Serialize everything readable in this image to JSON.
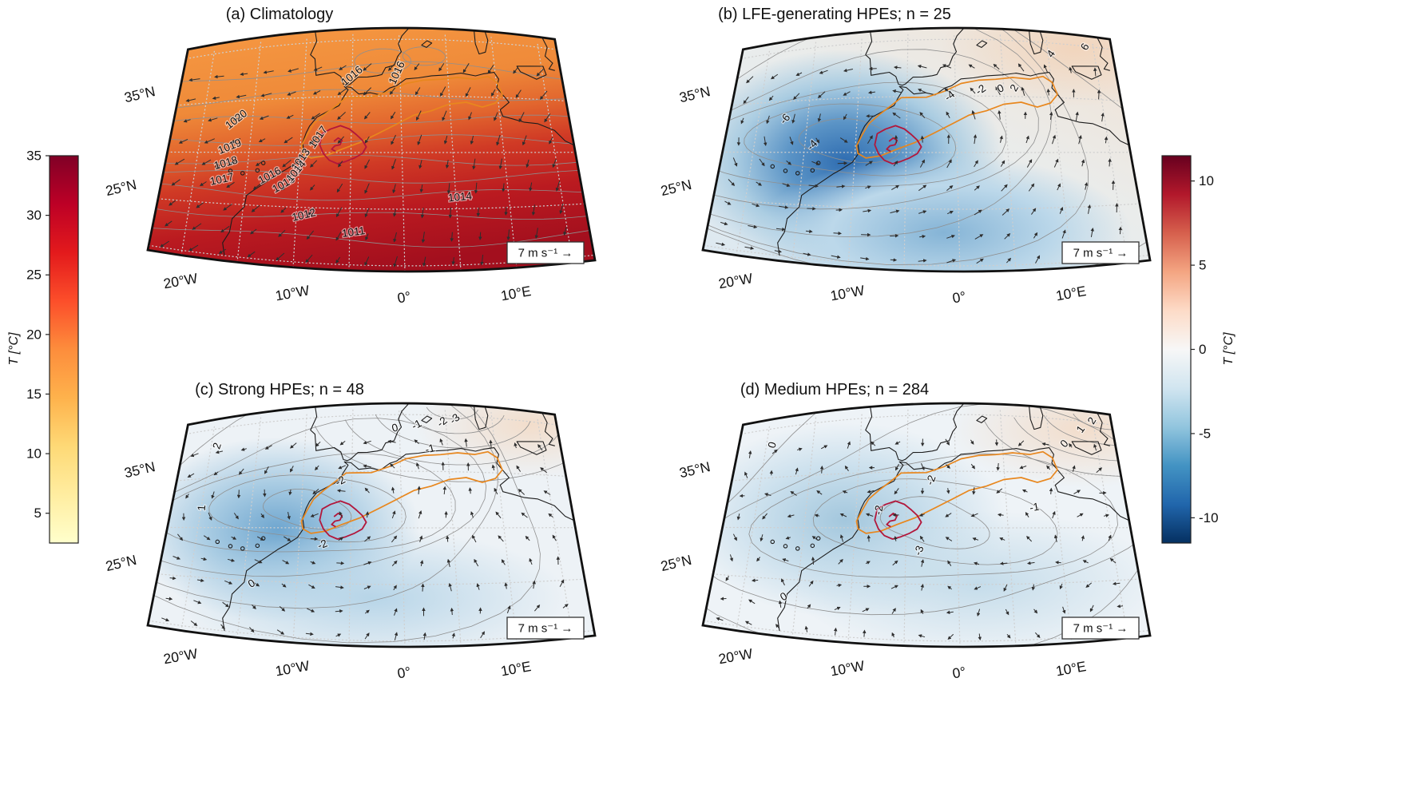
{
  "colorbar_left": {
    "label": "T [°C]",
    "ticks": [
      "35",
      "30",
      "25",
      "20",
      "15",
      "10",
      "5"
    ],
    "tick_values": [
      35,
      30,
      25,
      20,
      15,
      10,
      5
    ],
    "range": [
      2.5,
      35
    ],
    "colors": [
      "#ffffcc",
      "#ffeda0",
      "#fed976",
      "#feb24c",
      "#fd8d3c",
      "#fc4e2a",
      "#e31a1c",
      "#bd0026",
      "#800026"
    ]
  },
  "colorbar_right": {
    "label": "T [°C]",
    "ticks": [
      "10",
      "5",
      "0",
      "-5",
      "-10"
    ],
    "tick_values": [
      10,
      5,
      0,
      -5,
      -10
    ],
    "range": [
      -11.5,
      11.5
    ],
    "colors": [
      "#053061",
      "#2166ac",
      "#4393c3",
      "#92c5de",
      "#d1e5f0",
      "#f7f7f7",
      "#fddbc7",
      "#f4a582",
      "#d6604d",
      "#b2182b",
      "#67001f"
    ]
  },
  "panels": [
    {
      "id": "a",
      "title": "(a) Climatology",
      "scale_label": "7 m s⁻¹ →",
      "lat_labels": [
        {
          "text": "35°N",
          "lat": 35
        },
        {
          "text": "25°N",
          "lat": 25
        }
      ],
      "lon_labels": [
        {
          "text": "20°W",
          "lon": -20
        },
        {
          "text": "10°W",
          "lon": -10
        },
        {
          "text": "0°",
          "lon": 0
        },
        {
          "text": "10°E",
          "lon": 10
        }
      ],
      "contour_labels": [
        {
          "text": "1016",
          "u": 0.455,
          "v": 0.205,
          "rot": -40
        },
        {
          "text": "1016",
          "u": 0.575,
          "v": 0.19,
          "rot": -65
        },
        {
          "text": "1020",
          "u": 0.165,
          "v": 0.375,
          "rot": -38
        },
        {
          "text": "1019",
          "u": 0.155,
          "v": 0.5,
          "rot": -22
        },
        {
          "text": "1018",
          "u": 0.15,
          "v": 0.575,
          "rot": -16
        },
        {
          "text": "1017",
          "u": 0.145,
          "v": 0.65,
          "rot": -12
        },
        {
          "text": "1017",
          "u": 0.375,
          "v": 0.455,
          "rot": -55
        },
        {
          "text": "1013",
          "u": 0.335,
          "v": 0.55,
          "rot": -55
        },
        {
          "text": "1016",
          "u": 0.26,
          "v": 0.625,
          "rot": -28
        },
        {
          "text": "1015",
          "u": 0.295,
          "v": 0.66,
          "rot": -30
        },
        {
          "text": "1014",
          "u": 0.325,
          "v": 0.6,
          "rot": -50
        },
        {
          "text": "1012",
          "u": 0.345,
          "v": 0.79,
          "rot": -14
        },
        {
          "text": "1011",
          "u": 0.46,
          "v": 0.855,
          "rot": -8
        },
        {
          "text": "1014",
          "u": 0.71,
          "v": 0.71,
          "rot": -6
        }
      ]
    },
    {
      "id": "b",
      "title": "(b) LFE-generating HPEs; n = 25",
      "scale_label": "7 m s⁻¹ →",
      "lat_labels": [
        {
          "text": "35°N",
          "lat": 35
        },
        {
          "text": "25°N",
          "lat": 25
        }
      ],
      "lon_labels": [
        {
          "text": "20°W",
          "lon": -20
        },
        {
          "text": "10°W",
          "lon": -10
        },
        {
          "text": "0°",
          "lon": 0
        },
        {
          "text": "10°E",
          "lon": 10
        }
      ],
      "contour_labels": [
        {
          "text": "-6",
          "u": 0.15,
          "v": 0.37,
          "rot": -50
        },
        {
          "text": "-4",
          "u": 0.225,
          "v": 0.49,
          "rot": -45
        },
        {
          "text": "-4",
          "u": 0.565,
          "v": 0.29,
          "rot": -38
        },
        {
          "text": "-2",
          "u": 0.645,
          "v": 0.265,
          "rot": -35
        },
        {
          "text": "0",
          "u": 0.695,
          "v": 0.26,
          "rot": -25
        },
        {
          "text": "2",
          "u": 0.735,
          "v": 0.25,
          "rot": -60
        },
        {
          "text": "4",
          "u": 0.84,
          "v": 0.1,
          "rot": -55
        },
        {
          "text": "6",
          "u": 0.935,
          "v": 0.055,
          "rot": -60
        }
      ]
    },
    {
      "id": "c",
      "title": "(c) Strong HPEs; n = 48",
      "scale_label": "7 m s⁻¹ →",
      "lat_labels": [
        {
          "text": "35°N",
          "lat": 35
        },
        {
          "text": "25°N",
          "lat": 25
        }
      ],
      "lon_labels": [
        {
          "text": "20°W",
          "lon": -20
        },
        {
          "text": "10°W",
          "lon": -10
        },
        {
          "text": "0°",
          "lon": 0
        },
        {
          "text": "10°E",
          "lon": 10
        }
      ],
      "contour_labels": [
        {
          "text": "2",
          "u": 0.1,
          "v": 0.135,
          "rot": -72
        },
        {
          "text": "1",
          "u": 0.085,
          "v": 0.42,
          "rot": -86
        },
        {
          "text": "0",
          "u": 0.565,
          "v": 0.115,
          "rot": -15
        },
        {
          "text": "-1",
          "u": 0.625,
          "v": 0.1,
          "rot": -28
        },
        {
          "text": "-2",
          "u": 0.695,
          "v": 0.085,
          "rot": -38
        },
        {
          "text": "-3",
          "u": 0.73,
          "v": 0.07,
          "rot": -40
        },
        {
          "text": "-1",
          "u": 0.655,
          "v": 0.2,
          "rot": -14
        },
        {
          "text": "-2",
          "u": 0.425,
          "v": 0.33,
          "rot": -28
        },
        {
          "text": "-2",
          "u": 0.385,
          "v": 0.595,
          "rot": -22
        },
        {
          "text": "0",
          "u": 0.225,
          "v": 0.77,
          "rot": -32
        }
      ]
    },
    {
      "id": "d",
      "title": "(d) Medium HPEs; n = 284",
      "scale_label": "7 m s⁻¹ →",
      "lat_labels": [
        {
          "text": "35°N",
          "lat": 35
        },
        {
          "text": "25°N",
          "lat": 25
        }
      ],
      "lon_labels": [
        {
          "text": "20°W",
          "lon": -20
        },
        {
          "text": "10°W",
          "lon": -10
        },
        {
          "text": "0°",
          "lon": 0
        },
        {
          "text": "10°E",
          "lon": 10
        }
      ],
      "contour_labels": [
        {
          "text": "0",
          "u": 0.1,
          "v": 0.13,
          "rot": -75
        },
        {
          "text": "2",
          "u": 0.955,
          "v": 0.045,
          "rot": -60
        },
        {
          "text": "1",
          "u": 0.92,
          "v": 0.09,
          "rot": -55
        },
        {
          "text": "0",
          "u": 0.87,
          "v": 0.16,
          "rot": -48
        },
        {
          "text": "-1",
          "u": 0.77,
          "v": 0.44,
          "rot": -10
        },
        {
          "text": "-2",
          "u": 0.39,
          "v": 0.44,
          "rot": -80
        },
        {
          "text": "-2",
          "u": 0.52,
          "v": 0.32,
          "rot": -70
        },
        {
          "text": "-3",
          "u": 0.49,
          "v": 0.61,
          "rot": -70
        },
        {
          "text": "0",
          "u": 0.175,
          "v": 0.835,
          "rot": -30
        }
      ]
    }
  ]
}
